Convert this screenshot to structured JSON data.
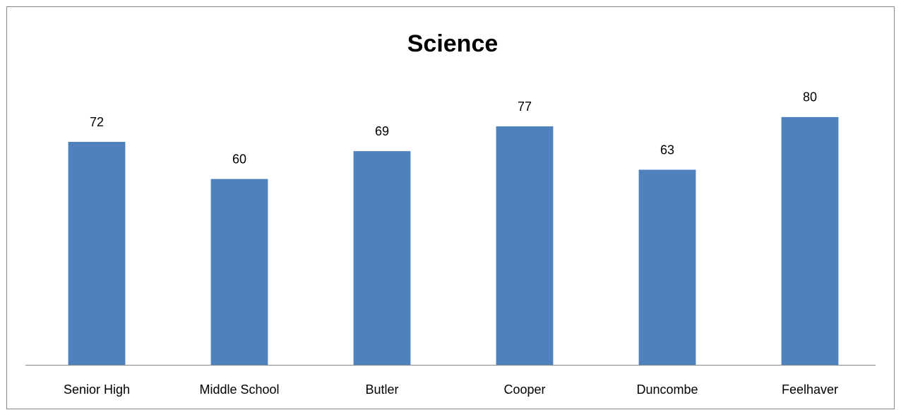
{
  "chart_data": {
    "type": "bar",
    "title": "Science",
    "categories": [
      "Senior High",
      "Middle School",
      "Butler",
      "Cooper",
      "Duncombe",
      "Feelhaver"
    ],
    "values": [
      72,
      60,
      69,
      77,
      63,
      80
    ],
    "color": "#4f81bd",
    "ylim": [
      0,
      90
    ]
  }
}
